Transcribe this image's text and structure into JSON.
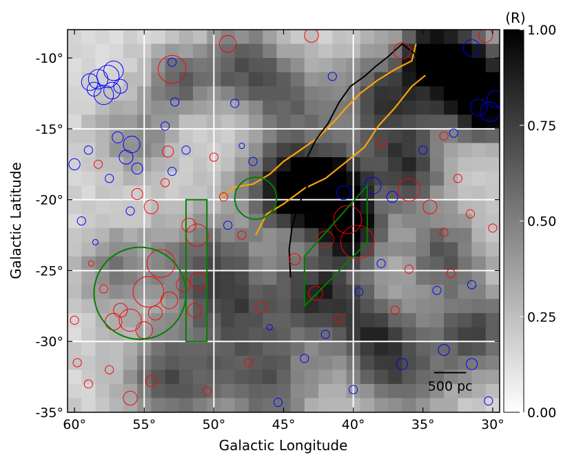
{
  "chart_data": {
    "type": "heatmap",
    "xlabel": "Galactic Longitude",
    "ylabel": "Galactic Latitude",
    "xlim": [
      60.5,
      29.5
    ],
    "ylim": [
      -35,
      -8
    ],
    "x_ticks": [
      60,
      55,
      50,
      45,
      40,
      35,
      30
    ],
    "x_tick_labels": [
      "60°",
      "55°",
      "50°",
      "45°",
      "40°",
      "35°",
      "30°"
    ],
    "y_ticks": [
      -10,
      -15,
      -20,
      -25,
      -30,
      -35
    ],
    "y_tick_labels": [
      "-10°",
      "-15°",
      "-20°",
      "-25°",
      "-30°",
      "-35°"
    ],
    "grid_lines": {
      "x": [
        55,
        50,
        40
      ],
      "y": [
        -15,
        -20,
        -25,
        -30
      ]
    },
    "colorbar": {
      "label": "(R)",
      "range": [
        0,
        1
      ],
      "ticks": [
        1.0,
        0.75,
        0.5,
        0.25,
        0.0
      ],
      "tick_labels": [
        "1.00",
        "0.75",
        "0.50",
        "0.25",
        "0.00"
      ],
      "colormap": "white-to-black"
    },
    "intensity_blobs": [
      {
        "l": 44.5,
        "b": -19.0,
        "sigma": 2.2,
        "value": 0.85
      },
      {
        "l": 41.5,
        "b": -19.5,
        "sigma": 1.8,
        "value": 0.95
      },
      {
        "l": 40.0,
        "b": -22.5,
        "sigma": 1.6,
        "value": 0.7
      },
      {
        "l": 37.5,
        "b": -13.0,
        "sigma": 2.5,
        "value": 0.6
      },
      {
        "l": 32.0,
        "b": -11.0,
        "sigma": 2.0,
        "value": 0.95
      },
      {
        "l": 30.5,
        "b": -13.5,
        "sigma": 1.5,
        "value": 0.9
      },
      {
        "l": 48.0,
        "b": -10.5,
        "sigma": 2.0,
        "value": 0.5
      },
      {
        "l": 52.5,
        "b": -11.5,
        "sigma": 1.5,
        "value": 0.45
      },
      {
        "l": 42.5,
        "b": -26.5,
        "sigma": 2.0,
        "value": 0.6
      },
      {
        "l": 36.0,
        "b": -18.0,
        "sigma": 2.0,
        "value": 0.55
      },
      {
        "l": 33.5,
        "b": -24.0,
        "sigma": 2.0,
        "value": 0.5
      },
      {
        "l": 31.0,
        "b": -29.5,
        "sigma": 2.0,
        "value": 0.55
      },
      {
        "l": 36.5,
        "b": -32.0,
        "sigma": 2.5,
        "value": 0.5
      },
      {
        "l": 46.0,
        "b": -33.0,
        "sigma": 2.5,
        "value": 0.45
      },
      {
        "l": 53.0,
        "b": -32.5,
        "sigma": 2.5,
        "value": 0.5
      },
      {
        "l": 57.0,
        "b": -25.0,
        "sigma": 2.0,
        "value": 0.35
      },
      {
        "l": 50.5,
        "b": -24.5,
        "sigma": 2.5,
        "value": 0.45
      },
      {
        "l": 44.5,
        "b": -13.0,
        "sigma": 2.0,
        "value": 0.4
      },
      {
        "l": 55.5,
        "b": -15.5,
        "sigma": 2.0,
        "value": 0.3
      },
      {
        "l": 48.0,
        "b": -28.0,
        "sigma": 2.5,
        "value": 0.4
      },
      {
        "l": 39.0,
        "b": -29.0,
        "sigma": 2.0,
        "value": 0.45
      },
      {
        "l": 34.5,
        "b": -9.5,
        "sigma": 1.5,
        "value": 0.6
      }
    ],
    "black_contour": [
      [
        44.5,
        -25.5
      ],
      [
        44.6,
        -23.5
      ],
      [
        44.4,
        -22.0
      ],
      [
        44.0,
        -20.5
      ],
      [
        43.5,
        -19.5
      ],
      [
        42.9,
        -18.2
      ],
      [
        43.3,
        -17.0
      ],
      [
        42.7,
        -15.8
      ],
      [
        41.8,
        -14.6
      ],
      [
        41.0,
        -13.1
      ],
      [
        40.2,
        -12.0
      ],
      [
        39.2,
        -11.3
      ],
      [
        38.4,
        -10.6
      ],
      [
        37.5,
        -9.9
      ],
      [
        36.5,
        -9.0
      ],
      [
        35.6,
        -9.7
      ],
      [
        35.0,
        -11.0
      ],
      [
        34.3,
        -11.6
      ],
      [
        33.5,
        -11.8
      ]
    ],
    "orange_contours": [
      [
        [
          49.5,
          -19.8
        ],
        [
          48.5,
          -19.1
        ],
        [
          47.2,
          -18.9
        ],
        [
          46.0,
          -18.2
        ],
        [
          45.0,
          -17.3
        ],
        [
          43.8,
          -16.5
        ],
        [
          42.5,
          -15.6
        ],
        [
          41.3,
          -14.4
        ],
        [
          40.5,
          -13.5
        ],
        [
          39.5,
          -12.5
        ],
        [
          38.3,
          -11.6
        ],
        [
          37.0,
          -10.8
        ],
        [
          35.8,
          -10.2
        ],
        [
          35.5,
          -9.0
        ]
      ],
      [
        [
          47.0,
          -22.5
        ],
        [
          46.2,
          -21.0
        ],
        [
          45.0,
          -20.3
        ],
        [
          43.5,
          -19.2
        ],
        [
          42.0,
          -18.5
        ],
        [
          40.6,
          -17.4
        ],
        [
          39.2,
          -16.3
        ],
        [
          38.2,
          -14.8
        ],
        [
          37.0,
          -13.5
        ],
        [
          35.8,
          -12.0
        ],
        [
          34.8,
          -11.2
        ]
      ]
    ],
    "green_regions": [
      {
        "shape": "circle",
        "l": 55.3,
        "b": -26.6,
        "r_deg": 3.3
      },
      {
        "shape": "rect",
        "l1": 52.0,
        "l2": 50.5,
        "b1": -20.0,
        "b2": -30.0
      },
      {
        "shape": "circle",
        "l": 47.0,
        "b": -19.9,
        "r_deg": 1.5
      },
      {
        "shape": "polygon",
        "points": [
          [
            43.5,
            -27.5
          ],
          [
            43.5,
            -24.0
          ],
          [
            39.0,
            -19.0
          ],
          [
            39.0,
            -23.0
          ],
          [
            42.5,
            -26.5
          ]
        ]
      }
    ],
    "blue_source_circles": [
      {
        "l": 58.9,
        "b": -11.7,
        "r": 0.6
      },
      {
        "l": 58.3,
        "b": -11.5,
        "r": 0.7
      },
      {
        "l": 57.6,
        "b": -11.3,
        "r": 0.8
      },
      {
        "l": 57.2,
        "b": -10.9,
        "r": 0.7
      },
      {
        "l": 57.9,
        "b": -12.6,
        "r": 0.7
      },
      {
        "l": 58.6,
        "b": -12.2,
        "r": 0.5
      },
      {
        "l": 57.3,
        "b": -12.3,
        "r": 0.6
      },
      {
        "l": 56.7,
        "b": -12.0,
        "r": 0.5
      },
      {
        "l": 55.9,
        "b": -16.1,
        "r": 0.6
      },
      {
        "l": 56.3,
        "b": -17.0,
        "r": 0.5
      },
      {
        "l": 55.5,
        "b": -17.8,
        "r": 0.4
      },
      {
        "l": 56.9,
        "b": -15.6,
        "r": 0.4
      },
      {
        "l": 52.8,
        "b": -13.1,
        "r": 0.3
      },
      {
        "l": 53.5,
        "b": -14.8,
        "r": 0.3
      },
      {
        "l": 59.0,
        "b": -16.5,
        "r": 0.3
      },
      {
        "l": 60.0,
        "b": -17.5,
        "r": 0.4
      },
      {
        "l": 57.5,
        "b": -18.5,
        "r": 0.3
      },
      {
        "l": 31.0,
        "b": -13.5,
        "r": 0.6
      },
      {
        "l": 30.2,
        "b": -13.8,
        "r": 0.7
      },
      {
        "l": 29.8,
        "b": -12.9,
        "r": 0.6
      },
      {
        "l": 40.7,
        "b": -19.5,
        "r": 0.5
      },
      {
        "l": 38.6,
        "b": -19.0,
        "r": 0.6
      },
      {
        "l": 37.2,
        "b": -19.8,
        "r": 0.4
      },
      {
        "l": 31.5,
        "b": -9.3,
        "r": 0.6
      },
      {
        "l": 35.0,
        "b": -16.5,
        "r": 0.3
      },
      {
        "l": 32.8,
        "b": -15.3,
        "r": 0.3
      },
      {
        "l": 43.5,
        "b": -31.2,
        "r": 0.3
      },
      {
        "l": 36.5,
        "b": -31.6,
        "r": 0.4
      },
      {
        "l": 33.5,
        "b": -30.6,
        "r": 0.4
      },
      {
        "l": 30.3,
        "b": -34.2,
        "r": 0.3
      },
      {
        "l": 45.4,
        "b": -34.3,
        "r": 0.3
      },
      {
        "l": 48.5,
        "b": -13.2,
        "r": 0.3
      },
      {
        "l": 48.0,
        "b": -16.2,
        "r": 0.2
      },
      {
        "l": 53.0,
        "b": -18.0,
        "r": 0.3
      },
      {
        "l": 58.5,
        "b": -23.0,
        "r": 0.2
      },
      {
        "l": 49.0,
        "b": -21.8,
        "r": 0.3
      },
      {
        "l": 39.6,
        "b": -26.5,
        "r": 0.3
      },
      {
        "l": 38.0,
        "b": -24.5,
        "r": 0.3
      },
      {
        "l": 42.0,
        "b": -29.5,
        "r": 0.3
      },
      {
        "l": 46.0,
        "b": -29.0,
        "r": 0.2
      },
      {
        "l": 34.0,
        "b": -26.4,
        "r": 0.3
      },
      {
        "l": 31.5,
        "b": -26.0,
        "r": 0.3
      },
      {
        "l": 31.5,
        "b": -31.6,
        "r": 0.4
      },
      {
        "l": 40.0,
        "b": -33.4,
        "r": 0.3
      },
      {
        "l": 56.0,
        "b": -20.8,
        "r": 0.3
      },
      {
        "l": 41.5,
        "b": -11.3,
        "r": 0.3
      },
      {
        "l": 53.0,
        "b": -10.3,
        "r": 0.3
      },
      {
        "l": 59.5,
        "b": -21.5,
        "r": 0.3
      },
      {
        "l": 52.0,
        "b": -16.5,
        "r": 0.3
      },
      {
        "l": 47.2,
        "b": -17.3,
        "r": 0.3
      }
    ],
    "red_source_circles": [
      {
        "l": 54.7,
        "b": -26.5,
        "r": 1.1
      },
      {
        "l": 53.8,
        "b": -24.5,
        "r": 1.0
      },
      {
        "l": 53.2,
        "b": -27.1,
        "r": 0.6
      },
      {
        "l": 56.0,
        "b": -28.5,
        "r": 0.8
      },
      {
        "l": 57.2,
        "b": -28.6,
        "r": 0.6
      },
      {
        "l": 55.0,
        "b": -29.2,
        "r": 0.6
      },
      {
        "l": 56.7,
        "b": -27.8,
        "r": 0.5
      },
      {
        "l": 54.2,
        "b": -28.0,
        "r": 0.5
      },
      {
        "l": 52.2,
        "b": -26.0,
        "r": 0.5
      },
      {
        "l": 51.2,
        "b": -22.5,
        "r": 0.8
      },
      {
        "l": 51.8,
        "b": -21.8,
        "r": 0.5
      },
      {
        "l": 51.1,
        "b": -25.7,
        "r": 0.6
      },
      {
        "l": 51.4,
        "b": -27.8,
        "r": 0.5
      },
      {
        "l": 40.4,
        "b": -21.4,
        "r": 1.0
      },
      {
        "l": 39.7,
        "b": -23.0,
        "r": 1.2
      },
      {
        "l": 42.0,
        "b": -22.8,
        "r": 0.6
      },
      {
        "l": 44.2,
        "b": -24.2,
        "r": 0.4
      },
      {
        "l": 42.7,
        "b": -26.6,
        "r": 0.5
      },
      {
        "l": 53.0,
        "b": -10.8,
        "r": 1.0
      },
      {
        "l": 55.5,
        "b": -19.6,
        "r": 0.4
      },
      {
        "l": 54.5,
        "b": -20.5,
        "r": 0.5
      },
      {
        "l": 53.3,
        "b": -16.6,
        "r": 0.4
      },
      {
        "l": 48.0,
        "b": -22.5,
        "r": 0.3
      },
      {
        "l": 46.6,
        "b": -27.6,
        "r": 0.4
      },
      {
        "l": 41.0,
        "b": -28.4,
        "r": 0.3
      },
      {
        "l": 36.0,
        "b": -19.3,
        "r": 0.8
      },
      {
        "l": 34.5,
        "b": -20.5,
        "r": 0.5
      },
      {
        "l": 33.5,
        "b": -15.5,
        "r": 0.3
      },
      {
        "l": 32.5,
        "b": -18.5,
        "r": 0.3
      },
      {
        "l": 30.5,
        "b": -8.4,
        "r": 0.5
      },
      {
        "l": 43.0,
        "b": -8.4,
        "r": 0.5
      },
      {
        "l": 49.0,
        "b": -9.0,
        "r": 0.6
      },
      {
        "l": 36.5,
        "b": -9.5,
        "r": 0.6
      },
      {
        "l": 36.0,
        "b": -24.9,
        "r": 0.3
      },
      {
        "l": 33.0,
        "b": -25.2,
        "r": 0.3
      },
      {
        "l": 59.8,
        "b": -31.5,
        "r": 0.3
      },
      {
        "l": 59.0,
        "b": -33.0,
        "r": 0.3
      },
      {
        "l": 56.0,
        "b": -34.0,
        "r": 0.5
      },
      {
        "l": 54.5,
        "b": -32.8,
        "r": 0.4
      },
      {
        "l": 57.5,
        "b": -32.0,
        "r": 0.3
      },
      {
        "l": 58.8,
        "b": -24.5,
        "r": 0.2
      },
      {
        "l": 57.9,
        "b": -26.3,
        "r": 0.3
      },
      {
        "l": 53.5,
        "b": -18.8,
        "r": 0.3
      },
      {
        "l": 50.0,
        "b": -17.0,
        "r": 0.3
      },
      {
        "l": 49.3,
        "b": -19.8,
        "r": 0.3
      },
      {
        "l": 37.0,
        "b": -27.8,
        "r": 0.3
      },
      {
        "l": 33.5,
        "b": -22.3,
        "r": 0.3
      },
      {
        "l": 31.6,
        "b": -21.0,
        "r": 0.3
      },
      {
        "l": 30.0,
        "b": -22.0,
        "r": 0.3
      },
      {
        "l": 38.0,
        "b": -16.0,
        "r": 0.3
      },
      {
        "l": 47.5,
        "b": -31.5,
        "r": 0.3
      },
      {
        "l": 50.5,
        "b": -33.5,
        "r": 0.3
      },
      {
        "l": 60.0,
        "b": -28.5,
        "r": 0.3
      },
      {
        "l": 58.3,
        "b": -17.5,
        "r": 0.3
      }
    ],
    "scale_bar": {
      "label": "500 pc",
      "l_start": 34.2,
      "l_end": 31.9,
      "b": -32.2
    }
  }
}
